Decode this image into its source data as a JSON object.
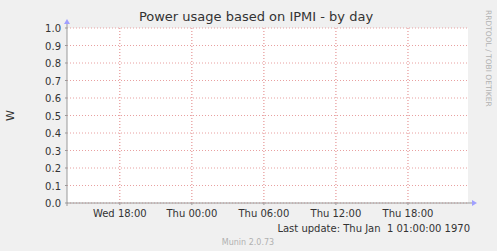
{
  "chart_data": {
    "type": "line",
    "title": "Power usage based on IPMI - by day",
    "ylabel": "W",
    "side_label": "RRDTOOL / TOBI OETIKER",
    "last_update": "Last update: Thu Jan  1 01:00:00 1970",
    "footer": "Munin 2.0.73",
    "series": [],
    "xlim": [
      13.6,
      47
    ],
    "xticks": [
      {
        "value": 18,
        "label": "Wed 18:00"
      },
      {
        "value": 24,
        "label": "Thu 00:00"
      },
      {
        "value": 30,
        "label": "Thu 06:00"
      },
      {
        "value": 36,
        "label": "Thu 12:00"
      },
      {
        "value": 42,
        "label": "Thu 18:00"
      }
    ],
    "ylim": [
      0,
      1
    ],
    "yticks": [
      {
        "value": 0,
        "label": "0.0"
      },
      {
        "value": 0.1,
        "label": "0.1"
      },
      {
        "value": 0.2,
        "label": "0.2"
      },
      {
        "value": 0.3,
        "label": "0.3"
      },
      {
        "value": 0.4,
        "label": "0.4"
      },
      {
        "value": 0.5,
        "label": "0.5"
      },
      {
        "value": 0.6,
        "label": "0.6"
      },
      {
        "value": 0.7,
        "label": "0.7"
      },
      {
        "value": 0.8,
        "label": "0.8"
      },
      {
        "value": 0.9,
        "label": "0.9"
      },
      {
        "value": 1,
        "label": "1.0"
      }
    ],
    "grid": true
  }
}
